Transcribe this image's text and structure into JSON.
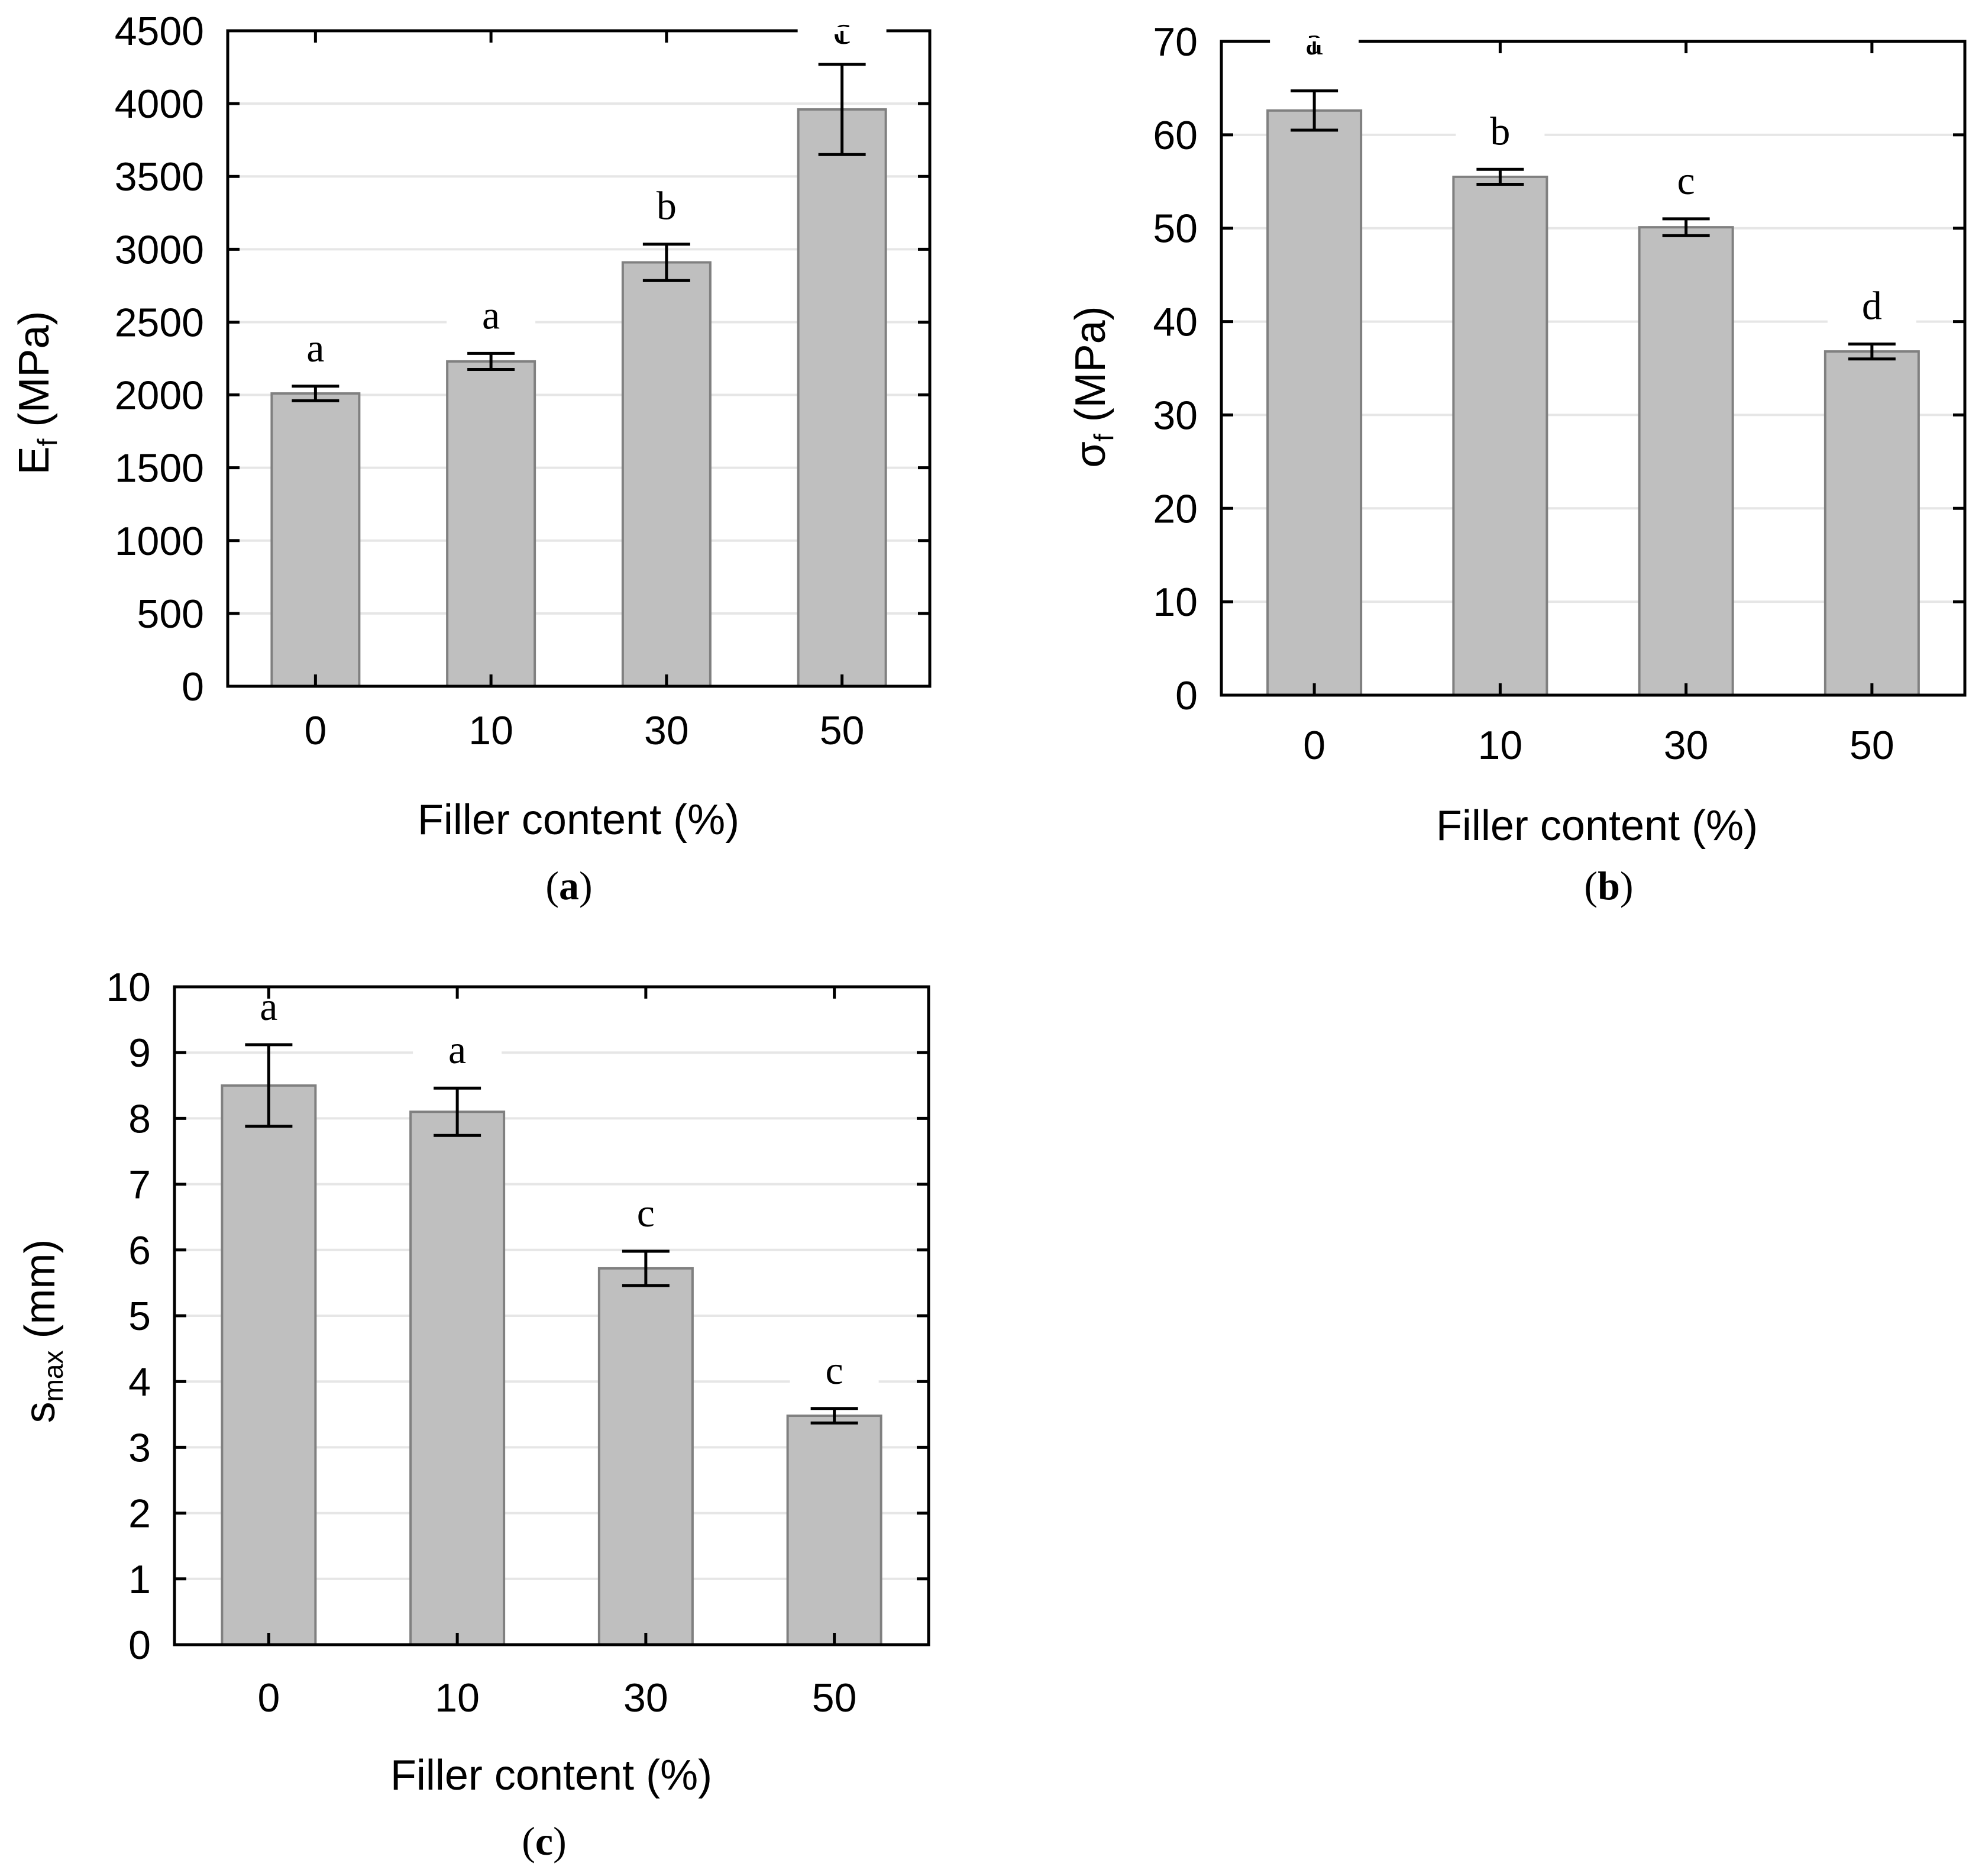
{
  "colors": {
    "bar_fill": "#bfbfbf",
    "bar_stroke": "#808080",
    "grid": "#e6e6e6",
    "axis": "#000000"
  },
  "chart_data": [
    {
      "type": "bar",
      "panel": "a",
      "caption_open": "(",
      "caption_letter": "a",
      "caption_close": ")",
      "categories": [
        "0",
        "10",
        "30",
        "50"
      ],
      "values": [
        2010,
        2230,
        2910,
        3960
      ],
      "errors": [
        50,
        55,
        125,
        310
      ],
      "significance_letters": [
        "a",
        "a",
        "b",
        "c"
      ],
      "title": "",
      "xlabel": "Filler content (%)",
      "ylabel_main": "E",
      "ylabel_sub": "f",
      "ylabel_unit": " (MPa)",
      "ylim": [
        0,
        4500
      ],
      "yticks": [
        0,
        500,
        1000,
        1500,
        2000,
        2500,
        3000,
        3500,
        4000,
        4500
      ],
      "grid": true
    },
    {
      "type": "bar",
      "panel": "b",
      "caption_open": "(",
      "caption_letter": "b",
      "caption_close": ")",
      "categories": [
        "0",
        "10",
        "30",
        "50"
      ],
      "values": [
        62.6,
        55.5,
        50.1,
        36.8
      ],
      "errors": [
        2.1,
        0.8,
        0.9,
        0.8
      ],
      "significance_letters": [
        "a",
        "b",
        "c",
        "d"
      ],
      "title": "",
      "xlabel": "Filler content (%)",
      "ylabel_main": "σ",
      "ylabel_sub": "f",
      "ylabel_unit": " (MPa)",
      "ylim": [
        0,
        70
      ],
      "yticks": [
        0,
        10,
        20,
        30,
        40,
        50,
        60,
        70
      ],
      "grid": true
    },
    {
      "type": "bar",
      "panel": "c",
      "caption_open": "(",
      "caption_letter": "c",
      "caption_close": ")",
      "categories": [
        "0",
        "10",
        "30",
        "50"
      ],
      "values": [
        8.5,
        8.1,
        5.72,
        3.48
      ],
      "errors": [
        0.62,
        0.36,
        0.26,
        0.11
      ],
      "significance_letters": [
        "a",
        "a",
        "c",
        "c"
      ],
      "title": "",
      "xlabel": "Filler content (%)",
      "ylabel_main": "s",
      "ylabel_sub": "max",
      "ylabel_unit": " (mm)",
      "ylim": [
        0,
        10
      ],
      "yticks": [
        0,
        1,
        2,
        3,
        4,
        5,
        6,
        7,
        8,
        9,
        10
      ],
      "grid": true
    }
  ]
}
